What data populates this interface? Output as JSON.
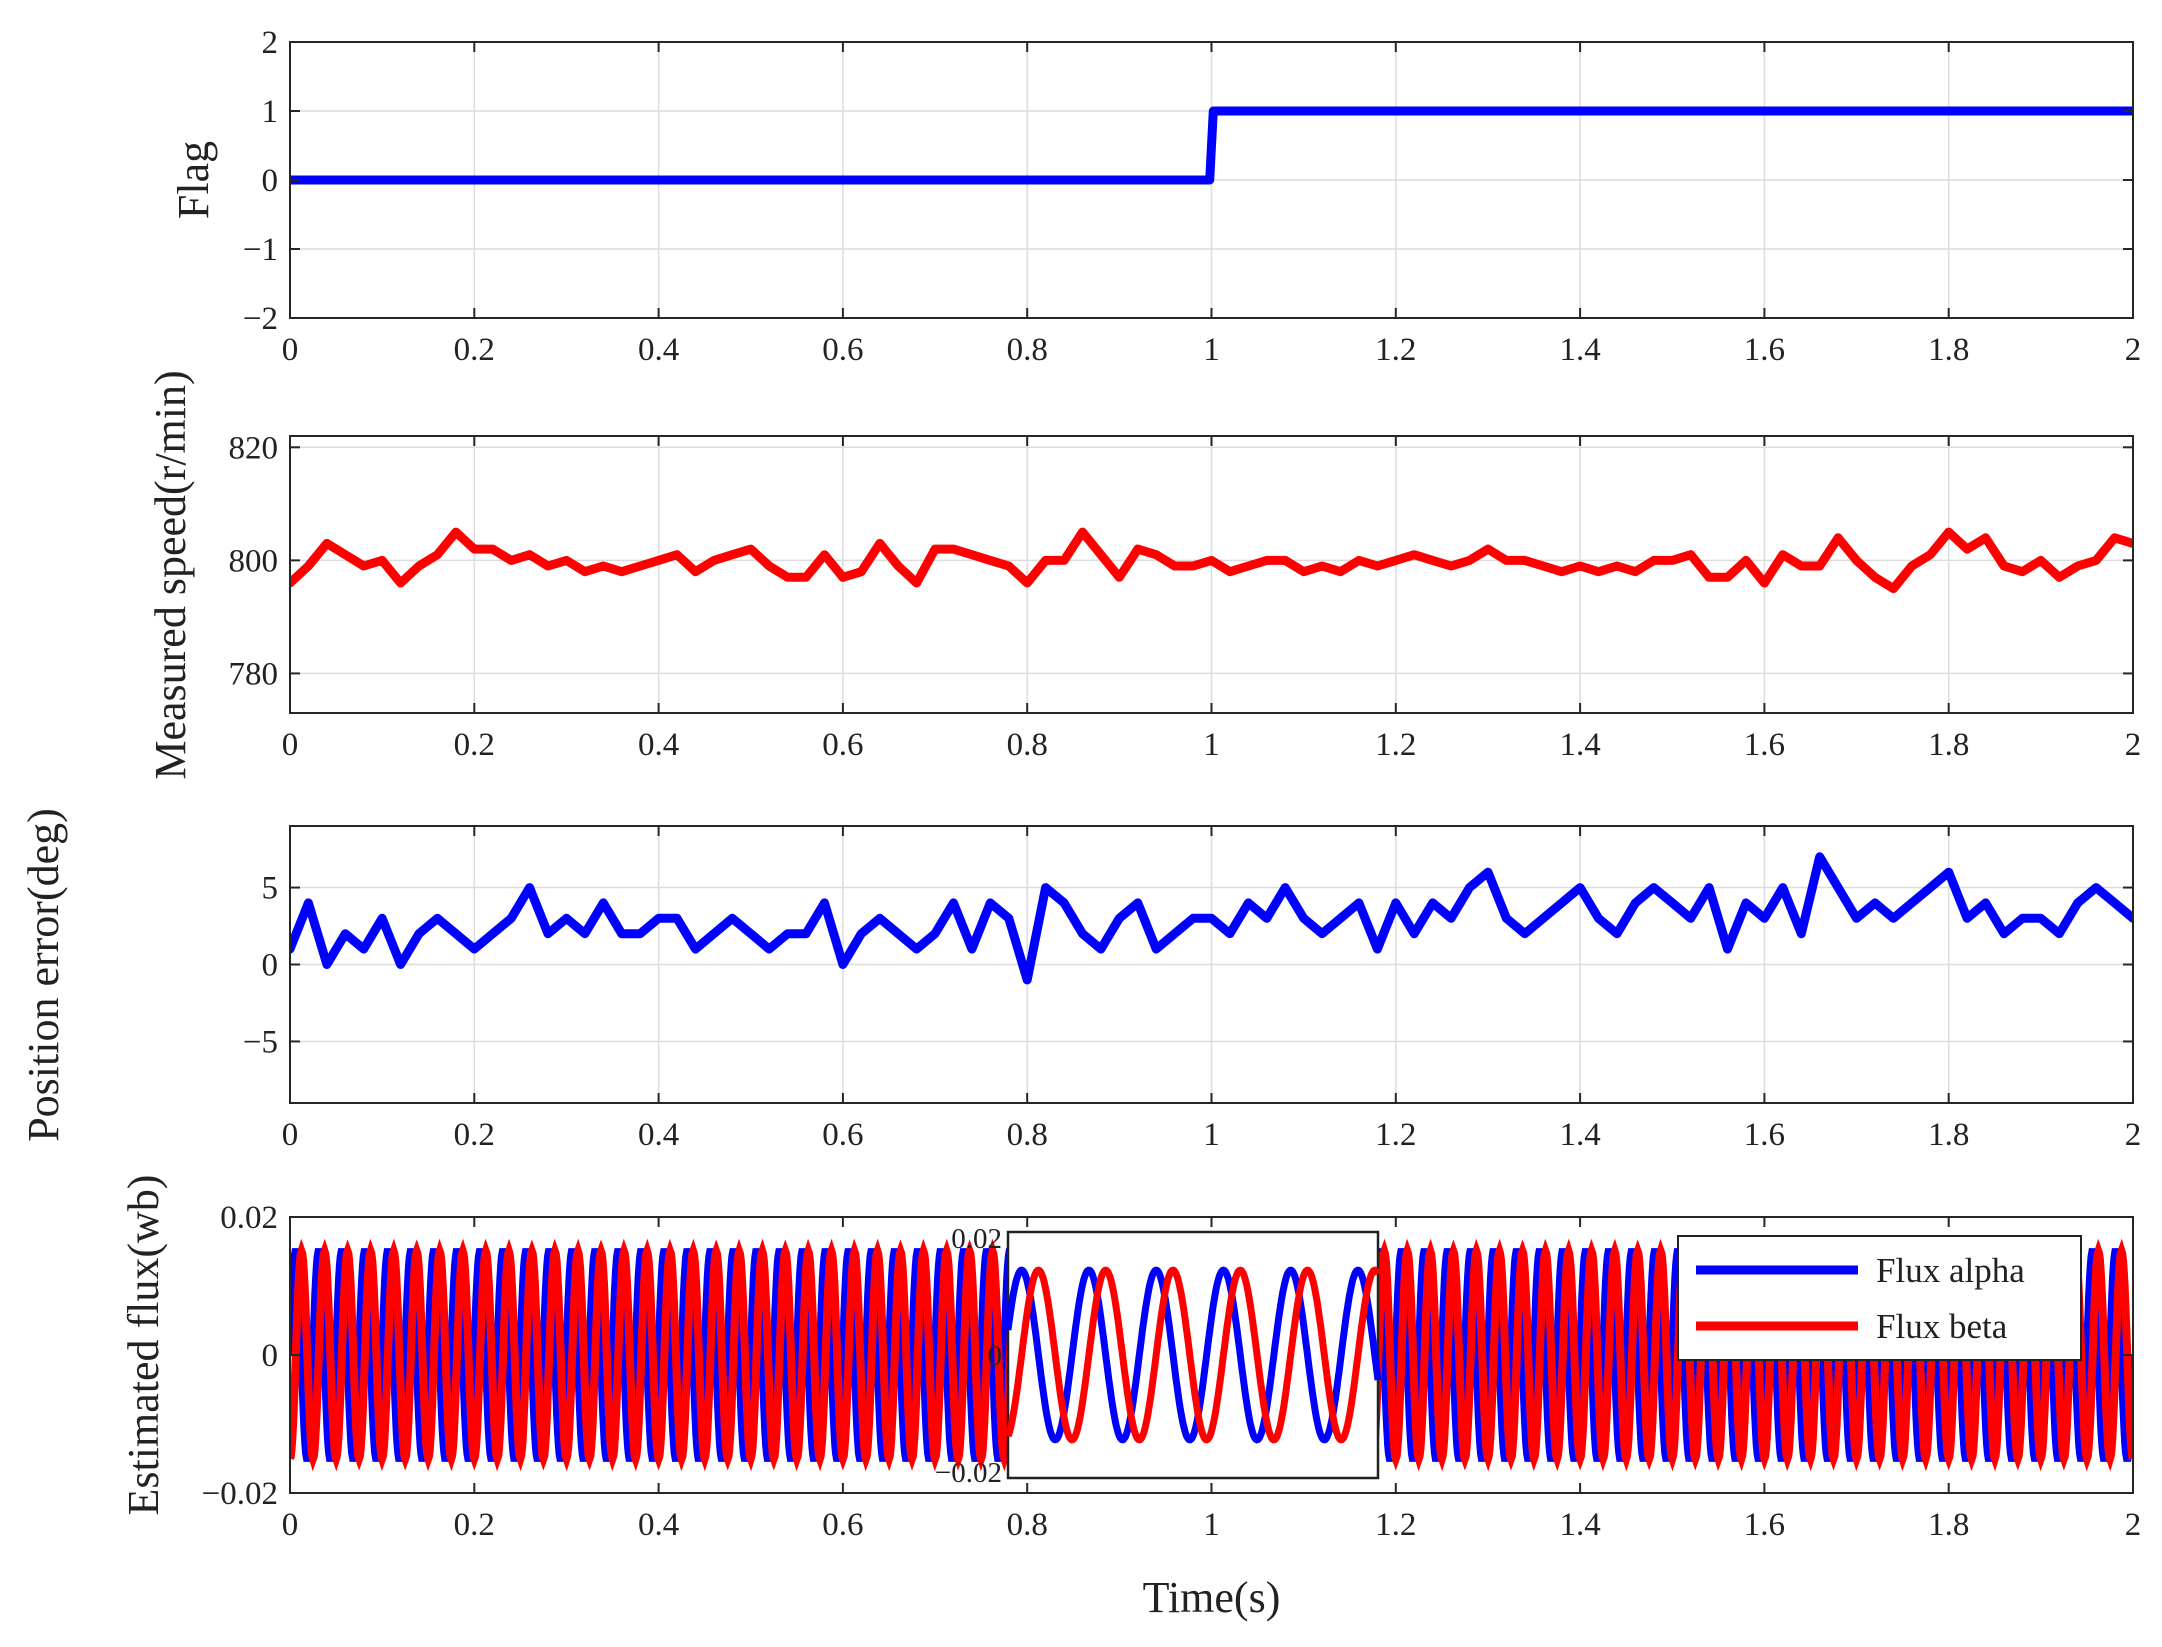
{
  "chart_data": [
    {
      "type": "line",
      "ylabel": "Flag",
      "xlim": [
        0,
        2
      ],
      "ylim": [
        -2,
        2
      ],
      "xticks": [
        "0",
        "0.2",
        "0.4",
        "0.6",
        "0.8",
        "1",
        "1.2",
        "1.4",
        "1.6",
        "1.8",
        "2"
      ],
      "yticks": [
        "−2",
        "−1",
        "0",
        "1",
        "2"
      ],
      "grid": true,
      "series": [
        {
          "color": "#0000ff",
          "x": [
            0,
            0.998,
            1.002,
            2
          ],
          "y": [
            0,
            0,
            1,
            1
          ]
        }
      ]
    },
    {
      "type": "line",
      "ylabel": "Measured speed(r/min)",
      "xlim": [
        0,
        2
      ],
      "ylim": [
        773,
        822
      ],
      "xticks": [
        "0",
        "0.2",
        "0.4",
        "0.6",
        "0.8",
        "1",
        "1.2",
        "1.4",
        "1.6",
        "1.8",
        "2"
      ],
      "yticks": [
        "780",
        "800",
        "820"
      ],
      "grid": true,
      "series": [
        {
          "color": "#ff0000",
          "x": [
            0,
            0.02,
            0.04,
            0.06,
            0.08,
            0.1,
            0.12,
            0.14,
            0.16,
            0.18,
            0.2,
            0.22,
            0.24,
            0.26,
            0.28,
            0.3,
            0.32,
            0.34,
            0.36,
            0.38,
            0.4,
            0.42,
            0.44,
            0.46,
            0.48,
            0.5,
            0.52,
            0.54,
            0.56,
            0.58,
            0.6,
            0.62,
            0.64,
            0.66,
            0.68,
            0.7,
            0.72,
            0.74,
            0.76,
            0.78,
            0.8,
            0.82,
            0.84,
            0.86,
            0.88,
            0.9,
            0.92,
            0.94,
            0.96,
            0.98,
            1.0,
            1.02,
            1.04,
            1.06,
            1.08,
            1.1,
            1.12,
            1.14,
            1.16,
            1.18,
            1.2,
            1.22,
            1.24,
            1.26,
            1.28,
            1.3,
            1.32,
            1.34,
            1.36,
            1.38,
            1.4,
            1.42,
            1.44,
            1.46,
            1.48,
            1.5,
            1.52,
            1.54,
            1.56,
            1.58,
            1.6,
            1.62,
            1.64,
            1.66,
            1.68,
            1.7,
            1.72,
            1.74,
            1.76,
            1.78,
            1.8,
            1.82,
            1.84,
            1.86,
            1.88,
            1.9,
            1.92,
            1.94,
            1.96,
            1.98,
            2.0
          ],
          "y": [
            796,
            799,
            803,
            801,
            799,
            800,
            796,
            799,
            801,
            805,
            802,
            802,
            800,
            801,
            799,
            800,
            798,
            799,
            798,
            799,
            800,
            801,
            798,
            800,
            801,
            802,
            799,
            797,
            797,
            801,
            797,
            798,
            803,
            799,
            796,
            802,
            802,
            801,
            800,
            799,
            796,
            800,
            800,
            805,
            801,
            797,
            802,
            801,
            799,
            799,
            800,
            798,
            799,
            800,
            800,
            798,
            799,
            798,
            800,
            799,
            800,
            801,
            800,
            799,
            800,
            802,
            800,
            800,
            799,
            798,
            799,
            798,
            799,
            798,
            800,
            800,
            801,
            797,
            797,
            800,
            796,
            801,
            799,
            799,
            804,
            800,
            797,
            795,
            799,
            801,
            805,
            802,
            804,
            799,
            798,
            800,
            797,
            799,
            800,
            804,
            803
          ]
        }
      ]
    },
    {
      "type": "line",
      "ylabel": "Position error(deg)",
      "xlim": [
        0,
        2
      ],
      "ylim": [
        -9,
        9
      ],
      "xticks": [
        "0",
        "0.2",
        "0.4",
        "0.6",
        "0.8",
        "1",
        "1.2",
        "1.4",
        "1.6",
        "1.8",
        "2"
      ],
      "yticks": [
        "−5",
        "0",
        "5"
      ],
      "grid": true,
      "series": [
        {
          "color": "#0000ff",
          "x": [
            0,
            0.02,
            0.04,
            0.06,
            0.08,
            0.1,
            0.12,
            0.14,
            0.16,
            0.18,
            0.2,
            0.22,
            0.24,
            0.26,
            0.28,
            0.3,
            0.32,
            0.34,
            0.36,
            0.38,
            0.4,
            0.42,
            0.44,
            0.46,
            0.48,
            0.5,
            0.52,
            0.54,
            0.56,
            0.58,
            0.6,
            0.62,
            0.64,
            0.66,
            0.68,
            0.7,
            0.72,
            0.74,
            0.76,
            0.78,
            0.8,
            0.82,
            0.84,
            0.86,
            0.88,
            0.9,
            0.92,
            0.94,
            0.96,
            0.98,
            1.0,
            1.02,
            1.04,
            1.06,
            1.08,
            1.1,
            1.12,
            1.14,
            1.16,
            1.18,
            1.2,
            1.22,
            1.24,
            1.26,
            1.28,
            1.3,
            1.32,
            1.34,
            1.36,
            1.38,
            1.4,
            1.42,
            1.44,
            1.46,
            1.48,
            1.5,
            1.52,
            1.54,
            1.56,
            1.58,
            1.6,
            1.62,
            1.64,
            1.66,
            1.68,
            1.7,
            1.72,
            1.74,
            1.76,
            1.78,
            1.8,
            1.82,
            1.84,
            1.86,
            1.88,
            1.9,
            1.92,
            1.94,
            1.96,
            1.98,
            2.0
          ],
          "y": [
            1,
            4,
            0,
            2,
            1,
            3,
            0,
            2,
            3,
            2,
            1,
            2,
            3,
            5,
            2,
            3,
            2,
            4,
            2,
            2,
            3,
            3,
            1,
            2,
            3,
            2,
            1,
            2,
            2,
            4,
            0,
            2,
            3,
            2,
            1,
            2,
            4,
            1,
            4,
            3,
            -1,
            5,
            4,
            2,
            1,
            3,
            4,
            1,
            2,
            3,
            3,
            2,
            4,
            3,
            5,
            3,
            2,
            3,
            4,
            1,
            4,
            2,
            4,
            3,
            5,
            6,
            3,
            2,
            3,
            4,
            5,
            3,
            2,
            4,
            5,
            4,
            3,
            5,
            1,
            4,
            3,
            5,
            2,
            7,
            5,
            3,
            4,
            3,
            4,
            5,
            6,
            3,
            4,
            2,
            3,
            3,
            2,
            4,
            5,
            4,
            3
          ]
        }
      ]
    },
    {
      "type": "line",
      "ylabel": "Estimated flux(wb)",
      "xlabel": "Time(s)",
      "xlim": [
        0,
        2
      ],
      "ylim": [
        -0.02,
        0.02
      ],
      "xticks": [
        "0",
        "0.2",
        "0.4",
        "0.6",
        "0.8",
        "1",
        "1.2",
        "1.4",
        "1.6",
        "1.8",
        "2"
      ],
      "yticks": [
        "−0.02",
        "0",
        "0.02"
      ],
      "grid": false,
      "legend": "top-right",
      "legend_entries": [
        "Flux alpha",
        "Flux beta"
      ],
      "amplitude": 0.015,
      "frequency_hz": 40,
      "series": [
        {
          "name": "Flux alpha",
          "color": "#0000ff"
        },
        {
          "name": "Flux beta",
          "color": "#ff0000"
        }
      ],
      "inset": {
        "yticks": [
          "0.02",
          "0",
          "−0.02"
        ],
        "cycles": 5.5
      }
    }
  ]
}
